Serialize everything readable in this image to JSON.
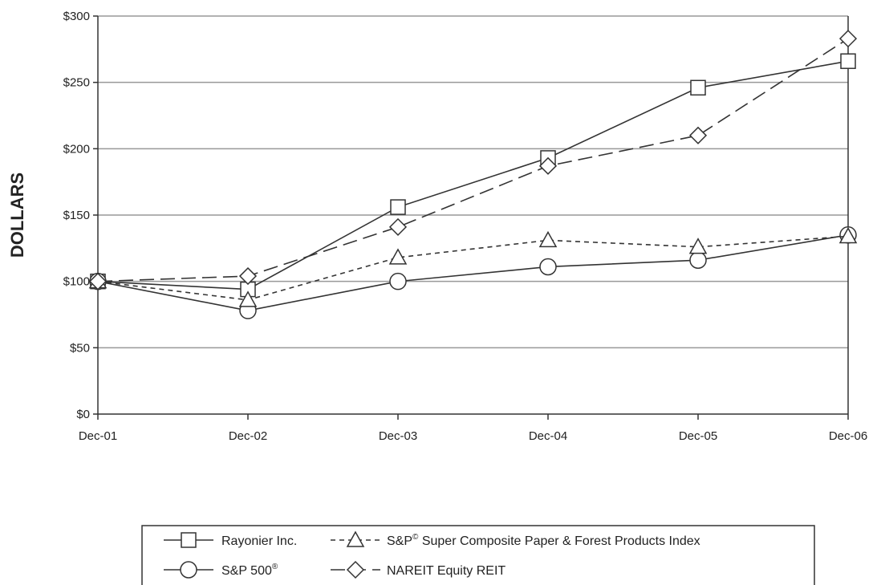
{
  "chart_data": {
    "type": "line",
    "ylabel": "DOLLARS",
    "xlabel": "",
    "categories": [
      "Dec-01",
      "Dec-02",
      "Dec-03",
      "Dec-04",
      "Dec-05",
      "Dec-06"
    ],
    "ylim": [
      0,
      300
    ],
    "yticks": [
      0,
      50,
      100,
      150,
      200,
      250,
      300
    ],
    "ytick_labels": [
      "$0",
      "$50",
      "$100",
      "$150",
      "$200",
      "$250",
      "$300"
    ],
    "grid": "horizontal",
    "legend_position": "bottom",
    "series": [
      {
        "name": "Rayonier Inc.",
        "marker": "square",
        "line": "solid",
        "values": [
          100,
          94,
          156,
          193,
          246,
          266
        ]
      },
      {
        "name": "S&P 500",
        "name_sup": "®",
        "marker": "circle",
        "line": "solid",
        "values": [
          100,
          78,
          100,
          111,
          116,
          135
        ]
      },
      {
        "name": "S&P",
        "name_sup": "©",
        "name_rest": " Super Composite Paper & Forest Products Index",
        "marker": "triangle",
        "line": "dashed-short",
        "values": [
          100,
          86,
          118,
          131,
          126,
          134
        ]
      },
      {
        "name": "NAREIT Equity REIT",
        "marker": "diamond",
        "line": "dashed-long",
        "values": [
          100,
          104,
          141,
          187,
          210,
          283
        ]
      }
    ],
    "line_color": "#333333",
    "grid_color": "#999999",
    "marker_fill": "#ffffff"
  }
}
